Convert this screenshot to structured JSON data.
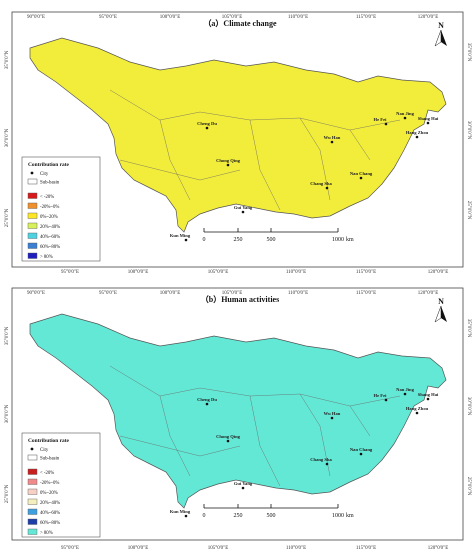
{
  "panels": [
    {
      "title": "（a）Climate change",
      "top_ticks": [
        "90°0'0\"E",
        "95°0'0\"E",
        "100°0'0\"E",
        "105°0'0\"E",
        "110°0'0\"E",
        "115°0'0\"E",
        "120°0'0\"E"
      ],
      "bottom_ticks": [
        "95°0'0\"E",
        "100°0'0\"E",
        "105°0'0\"E",
        "110°0'0\"E",
        "115°0'0\"E",
        "120°0'0\"E"
      ],
      "left_ticks": [
        "35°0'0\"N",
        "30°0'0\"N",
        "25°0'0\"N"
      ],
      "right_ticks": [
        "35°0'0\"N",
        "30°0'0\"N",
        "25°0'0\"N"
      ],
      "legend": {
        "title": "Contribution rate",
        "symbols": [
          "City",
          "Sub-basin"
        ],
        "classes": [
          {
            "label": "< -20%",
            "color": "#d7191c"
          },
          {
            "label": "-20%~0%",
            "color": "#f0902c"
          },
          {
            "label": "0%~20%",
            "color": "#fde725"
          },
          {
            "label": "20%~40%",
            "color": "#d8f05a"
          },
          {
            "label": "40%~60%",
            "color": "#4fd2e0"
          },
          {
            "label": "60%~80%",
            "color": "#3a7fd4"
          },
          {
            "label": "> 80%",
            "color": "#1f1fbf"
          }
        ]
      },
      "fill": {
        "base": "#f2ec3a",
        "west": "#7cc9c8",
        "east": "#f6d21e",
        "hot": "#f0a828",
        "tip": "#cc2f2f"
      },
      "north": "N"
    },
    {
      "title": "（b）Human activities",
      "top_ticks": [
        "90°0'0\"E",
        "95°0'0\"E",
        "100°0'0\"E",
        "105°0'0\"E",
        "110°0'0\"E",
        "115°0'0\"E",
        "120°0'0\"E"
      ],
      "bottom_ticks": [
        "95°0'0\"E",
        "100°0'0\"E",
        "105°0'0\"E",
        "110°0'0\"E",
        "115°0'0\"E",
        "120°0'0\"E"
      ],
      "left_ticks": [
        "35°0'0\"N",
        "30°0'0\"N",
        "25°0'0\"N"
      ],
      "right_ticks": [
        "35°0'0\"N",
        "30°0'0\"N",
        "25°0'0\"N"
      ],
      "legend": {
        "title": "Contribution rate",
        "symbols": [
          "City",
          "Sub-basin"
        ],
        "classes": [
          {
            "label": "< -20%",
            "color": "#c81e1e"
          },
          {
            "label": "-20%~0%",
            "color": "#ef8a8a"
          },
          {
            "label": "0%~20%",
            "color": "#f6d0c4"
          },
          {
            "label": "20%~40%",
            "color": "#f3efc0"
          },
          {
            "label": "40%~60%",
            "color": "#3fa0e0"
          },
          {
            "label": "60%~80%",
            "color": "#1f3fa8"
          },
          {
            "label": "> 80%",
            "color": "#63e8d6"
          }
        ]
      },
      "fill": {
        "base": "#63e8d6",
        "west": "#4fb8d8",
        "east": "#5fd6d0",
        "hot": "#2a62c4",
        "tip": "#c83a3a"
      },
      "north": "N"
    }
  ],
  "cities": [
    "Cheng Du",
    "Chong Qing",
    "Gui Yang",
    "Kun Ming",
    "Wu Han",
    "Chang Sha",
    "Nan Chang",
    "He Fei",
    "Nan Jing",
    "Shang Hai",
    "Hang Zhou"
  ],
  "scale": {
    "labels": [
      "0",
      "250",
      "500",
      "1000"
    ],
    "unit": "km"
  }
}
